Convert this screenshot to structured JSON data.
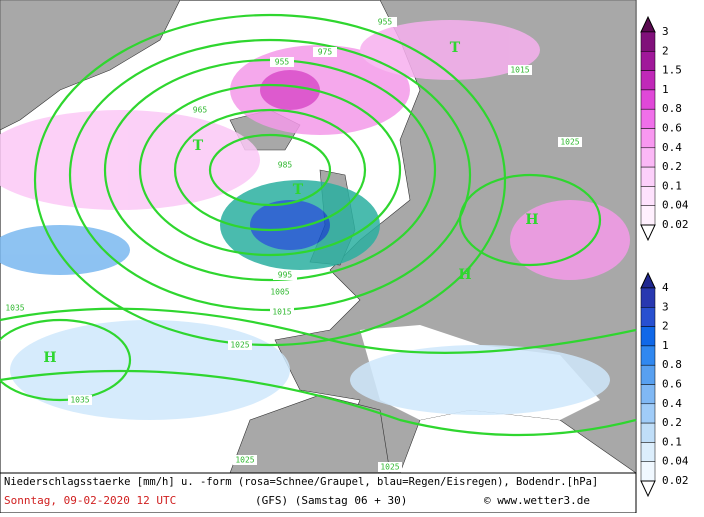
{
  "map": {
    "pressure_labels": [
      "955",
      "965",
      "975",
      "985",
      "995",
      "1005",
      "1015",
      "1025",
      "1035",
      "1015",
      "1025",
      "1035",
      "1025",
      "955",
      "1025"
    ],
    "centers": [
      "T",
      "T",
      "T",
      "H",
      "H",
      "H"
    ],
    "snow_scale": [
      "3",
      "2",
      "1.5",
      "1",
      "0.8",
      "0.6",
      "0.4",
      "0.2",
      "0.1",
      "0.04",
      "0.02"
    ],
    "rain_scale": [
      "4",
      "3",
      "2",
      "1",
      "0.8",
      "0.6",
      "0.4",
      "0.2",
      "0.1",
      "0.04",
      "0.02"
    ],
    "caption": {
      "line1": "Niederschlagsstaerke [mm/h] u. -form (rosa=Schnee/Graupel, blau=Regen/Eisregen), Bodendr.[hPa]",
      "date": "Sonntag, 09-02-2020  12 UTC",
      "model": "(GFS)  (Samstag 06 + 30)",
      "source": "© www.wetter3.de"
    }
  }
}
